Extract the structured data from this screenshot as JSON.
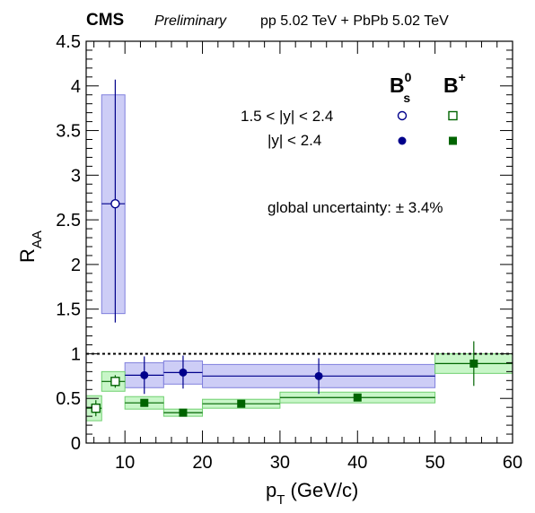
{
  "header": {
    "experiment": "CMS",
    "status": "Preliminary",
    "collision": "pp 5.02 TeV + PbPb 5.02 TeV"
  },
  "legend": {
    "bs_base": "B",
    "bs_sup": "0",
    "bs_sub": "s",
    "bp_base": "B",
    "bp_sup": "+",
    "row1_label": "1.5 < |y| < 2.4",
    "row2_label": "|y| < 2.4"
  },
  "global_uncertainty": "global uncertainty: ± 3.4%",
  "chart_data": {
    "type": "scatter",
    "xlabel_base": "p",
    "xlabel_sub": "T",
    "xlabel_unit": " (GeV/c)",
    "ylabel_base": "R",
    "ylabel_sub": "AA",
    "xlim": [
      5,
      60
    ],
    "ylim": [
      0,
      4.5
    ],
    "x_ticks": [
      10,
      20,
      30,
      40,
      50,
      60
    ],
    "y_ticks": [
      0,
      0.5,
      1,
      1.5,
      2,
      2.5,
      3,
      3.5,
      4,
      4.5
    ],
    "x_tick_labels": [
      "10",
      "20",
      "30",
      "40",
      "50",
      "60"
    ],
    "y_tick_labels": [
      "0",
      "0.5",
      "1",
      "1.5",
      "2",
      "2.5",
      "3",
      "3.5",
      "4",
      "4.5"
    ],
    "reference_line": 1.0,
    "colors": {
      "bs_marker": "#00008b",
      "bs_box": "#c8c8f5",
      "bs_box_edge": "#8080dd",
      "bp_marker": "#006400",
      "bp_box": "#c2f5c2",
      "bp_box_edge": "#70d070"
    },
    "series": [
      {
        "particle": "Bs0",
        "rapidity": "1.5 < |y| < 2.4",
        "marker": "open-circle",
        "points": [
          {
            "x": 8.75,
            "xlo": 7,
            "xhi": 10,
            "y": 2.68,
            "stat_lo": 1.33,
            "stat_hi": 1.39,
            "sys_lo": 1.23,
            "sys_hi": 1.22
          }
        ]
      },
      {
        "particle": "Bs0",
        "rapidity": "|y| < 2.4",
        "marker": "filled-circle",
        "points": [
          {
            "x": 12.5,
            "xlo": 10,
            "xhi": 15,
            "y": 0.76,
            "stat_lo": 0.21,
            "stat_hi": 0.21,
            "sys_lo": 0.14,
            "sys_hi": 0.14
          },
          {
            "x": 17.5,
            "xlo": 15,
            "xhi": 20,
            "y": 0.79,
            "stat_lo": 0.18,
            "stat_hi": 0.19,
            "sys_lo": 0.13,
            "sys_hi": 0.13
          },
          {
            "x": 35,
            "xlo": 20,
            "xhi": 50,
            "y": 0.75,
            "stat_lo": 0.2,
            "stat_hi": 0.2,
            "sys_lo": 0.13,
            "sys_hi": 0.13
          }
        ]
      },
      {
        "particle": "Bp",
        "rapidity": "1.5 < |y| < 2.4",
        "marker": "open-square",
        "points": [
          {
            "x": 6.25,
            "xlo": 5,
            "xhi": 7,
            "y": 0.39,
            "stat_lo": 0.09,
            "stat_hi": 0.09,
            "sys_lo": 0.14,
            "sys_hi": 0.14
          },
          {
            "x": 8.75,
            "xlo": 7,
            "xhi": 10,
            "y": 0.69,
            "stat_lo": 0.07,
            "stat_hi": 0.07,
            "sys_lo": 0.11,
            "sys_hi": 0.11
          }
        ]
      },
      {
        "particle": "Bp",
        "rapidity": "|y| < 2.4",
        "marker": "filled-square",
        "points": [
          {
            "x": 12.5,
            "xlo": 10,
            "xhi": 15,
            "y": 0.45,
            "stat_lo": 0.04,
            "stat_hi": 0.04,
            "sys_lo": 0.07,
            "sys_hi": 0.07
          },
          {
            "x": 17.5,
            "xlo": 15,
            "xhi": 20,
            "y": 0.34,
            "stat_lo": 0.03,
            "stat_hi": 0.03,
            "sys_lo": 0.04,
            "sys_hi": 0.04
          },
          {
            "x": 25,
            "xlo": 20,
            "xhi": 30,
            "y": 0.44,
            "stat_lo": 0.03,
            "stat_hi": 0.03,
            "sys_lo": 0.05,
            "sys_hi": 0.05
          },
          {
            "x": 40,
            "xlo": 30,
            "xhi": 50,
            "y": 0.51,
            "stat_lo": 0.03,
            "stat_hi": 0.03,
            "sys_lo": 0.06,
            "sys_hi": 0.06
          },
          {
            "x": 55,
            "xlo": 50,
            "xhi": 60,
            "y": 0.89,
            "stat_lo": 0.25,
            "stat_hi": 0.25,
            "sys_lo": 0.11,
            "sys_hi": 0.11
          }
        ]
      }
    ]
  }
}
